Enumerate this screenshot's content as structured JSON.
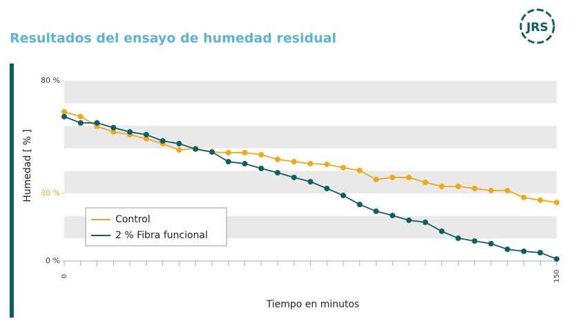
{
  "chart_data": {
    "type": "line",
    "title": "Resultados del ensayo de humedad residual",
    "logo": "JRS",
    "ylabel": "Humedad [ % ]",
    "xlabel": "Tiempo en minutos",
    "x": [
      0,
      5,
      10,
      15,
      20,
      25,
      30,
      35,
      40,
      45,
      50,
      55,
      60,
      65,
      70,
      75,
      80,
      85,
      90,
      95,
      100,
      105,
      110,
      115,
      120,
      125,
      130,
      135,
      140,
      145,
      150
    ],
    "series": [
      {
        "name": "Control",
        "color": "#f0a818",
        "values": [
          66.2,
          64.1,
          59.8,
          57.3,
          56.1,
          54.3,
          52.1,
          49.3,
          50,
          48.4,
          48.1,
          48.1,
          47.2,
          45.1,
          44.1,
          43.2,
          42.9,
          41.4,
          40.2,
          36.2,
          37.1,
          37.1,
          34.9,
          33.1,
          33.1,
          32.2,
          31.3,
          31.3,
          28.2,
          27,
          26
        ]
      },
      {
        "name": "2 % Fibra funcional",
        "color": "#0e5e66",
        "values": [
          64.1,
          61.3,
          61.3,
          59.2,
          57.3,
          56.1,
          53.3,
          52.1,
          49.7,
          48.4,
          44.1,
          43.2,
          41.1,
          39.2,
          37.1,
          35.2,
          32.2,
          29.1,
          25.1,
          22.1,
          20.2,
          18.1,
          17.2,
          13.2,
          10.1,
          8.9,
          7.7,
          5.2,
          4.3,
          3.7,
          0.9
        ]
      }
    ],
    "xlim": [
      0,
      150
    ],
    "xticks": [
      0,
      150
    ],
    "ylim": [
      0,
      80
    ],
    "yticks": [
      {
        "value": 0,
        "label": "0 %"
      },
      {
        "value": 30,
        "label": "30 %",
        "color": "#f0a818"
      },
      {
        "value": 80,
        "label": "80 %"
      }
    ],
    "grid_bands": [
      [
        10,
        20
      ],
      [
        30,
        40
      ],
      [
        50,
        60
      ],
      [
        70,
        80
      ]
    ],
    "legend": "lower left"
  }
}
